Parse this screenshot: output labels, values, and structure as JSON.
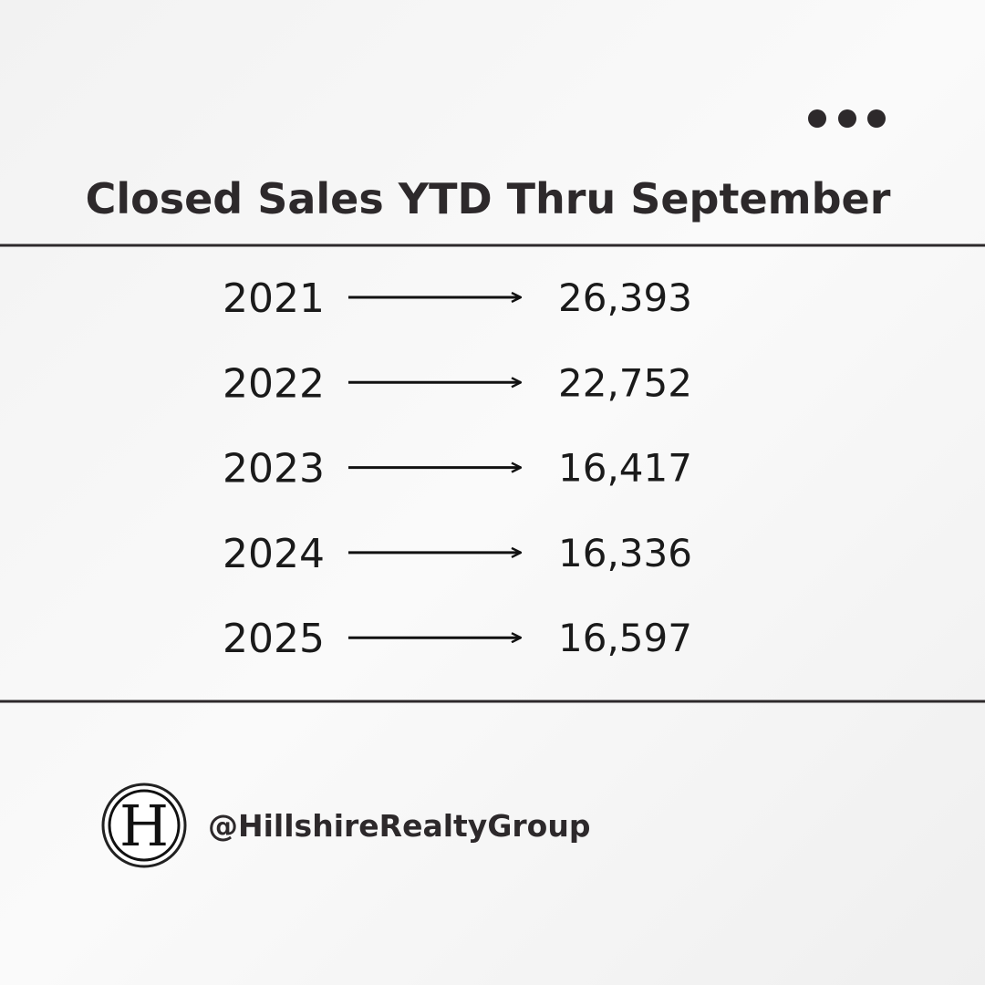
{
  "header": {
    "title": "Closed Sales YTD Thru September"
  },
  "rows": [
    {
      "year": "2021",
      "value": "26,393"
    },
    {
      "year": "2022",
      "value": "22,752"
    },
    {
      "year": "2023",
      "value": "16,417"
    },
    {
      "year": "2024",
      "value": "16,336"
    },
    {
      "year": "2025",
      "value": "16,597"
    }
  ],
  "footer": {
    "logo": "H",
    "handle": "@HillshireRealtyGroup"
  }
}
